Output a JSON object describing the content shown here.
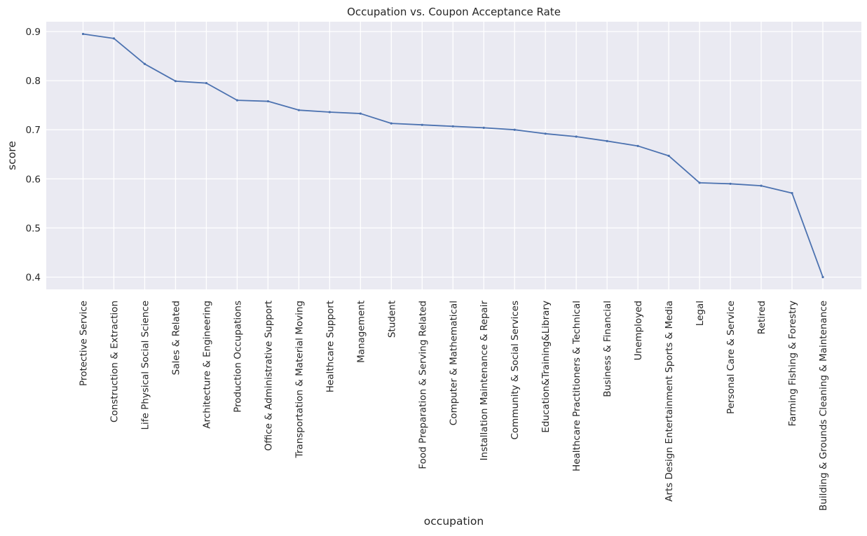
{
  "chart_data": {
    "type": "line",
    "title": "Occupation vs. Coupon Acceptance Rate",
    "xlabel": "occupation",
    "ylabel": "score",
    "ylim": [
      0.375,
      0.92
    ],
    "yticks": [
      0.4,
      0.5,
      0.6,
      0.7,
      0.8,
      0.9
    ],
    "ytick_labels": [
      "0.4",
      "0.5",
      "0.6",
      "0.7",
      "0.8",
      "0.9"
    ],
    "grid": true,
    "background": "#eaeaf2",
    "grid_color": "#ffffff",
    "line_color": "#4c72b0",
    "categories": [
      "Protective Service",
      "Construction & Extraction",
      "Life Physical Social Science",
      "Sales & Related",
      "Architecture & Engineering",
      "Production Occupations",
      "Office & Administrative Support",
      "Transportation & Material Moving",
      "Healthcare Support",
      "Management",
      "Student",
      "Food Preparation & Serving Related",
      "Computer & Mathematical",
      "Installation Maintenance & Repair",
      "Community & Social Services",
      "Education&Training&Library",
      "Healthcare Practitioners & Technical",
      "Business & Financial",
      "Unemployed",
      "Arts Design Entertainment Sports & Media",
      "Legal",
      "Personal Care & Service",
      "Retired",
      "Farming Fishing & Forestry",
      "Building & Grounds Cleaning & Maintenance"
    ],
    "series": [
      {
        "values": [
          0.895,
          0.886,
          0.834,
          0.799,
          0.795,
          0.76,
          0.758,
          0.74,
          0.736,
          0.733,
          0.713,
          0.71,
          0.707,
          0.704,
          0.7,
          0.692,
          0.686,
          0.677,
          0.667,
          0.647,
          0.592,
          0.59,
          0.586,
          0.571,
          0.4
        ]
      }
    ]
  }
}
